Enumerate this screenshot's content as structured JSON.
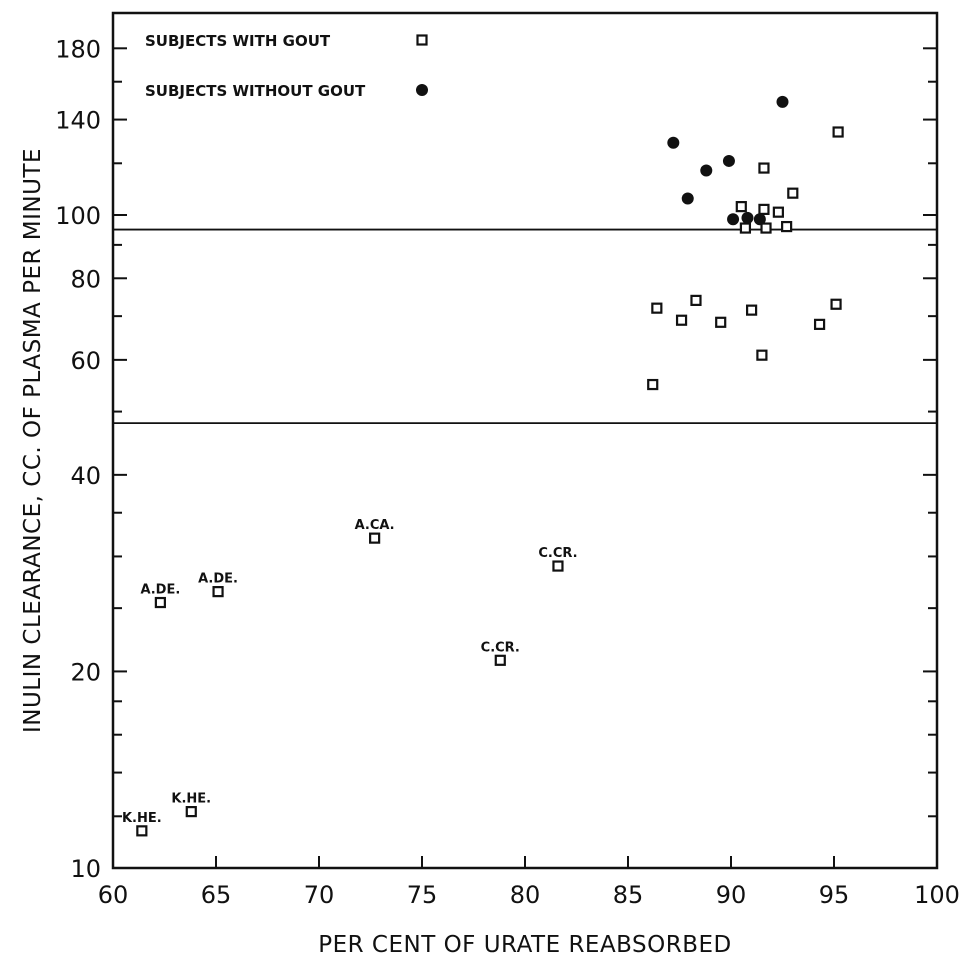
{
  "chart_data": {
    "type": "scatter",
    "xlabel": "PER CENT OF URATE REABSORBED",
    "ylabel": "INULIN CLEARANCE, CC. OF PLASMA PER MINUTE",
    "xlim": [
      60,
      100
    ],
    "ylim": [
      10,
      200
    ],
    "y_scale": "log",
    "grid": false,
    "legend_position": "top-left",
    "x_ticks": [
      60,
      65,
      70,
      75,
      80,
      85,
      90,
      95,
      100
    ],
    "x_tick_labels": [
      "60",
      "65",
      "70",
      "75",
      "80",
      "85",
      "90",
      "95",
      "100"
    ],
    "y_ticks": [
      10,
      20,
      40,
      60,
      80,
      100,
      140,
      180
    ],
    "y_tick_labels": [
      "10",
      "20",
      "40",
      "60",
      "80",
      "100",
      "140",
      "180"
    ],
    "reference_lines_y": [
      95,
      48
    ],
    "series": [
      {
        "name": "SUBJECTS WITH GOUT",
        "marker": "open-square",
        "points": [
          {
            "x": 95.2,
            "y": 134
          },
          {
            "x": 91.6,
            "y": 118
          },
          {
            "x": 93.0,
            "y": 108
          },
          {
            "x": 90.5,
            "y": 103
          },
          {
            "x": 91.6,
            "y": 102
          },
          {
            "x": 92.3,
            "y": 101
          },
          {
            "x": 90.7,
            "y": 95.5
          },
          {
            "x": 91.7,
            "y": 95.5
          },
          {
            "x": 92.7,
            "y": 96
          },
          {
            "x": 86.4,
            "y": 72
          },
          {
            "x": 88.3,
            "y": 74
          },
          {
            "x": 87.6,
            "y": 69
          },
          {
            "x": 89.5,
            "y": 68.5
          },
          {
            "x": 91.0,
            "y": 71.5
          },
          {
            "x": 95.1,
            "y": 73
          },
          {
            "x": 94.3,
            "y": 68
          },
          {
            "x": 91.5,
            "y": 61
          },
          {
            "x": 86.2,
            "y": 55
          },
          {
            "x": 72.7,
            "y": 32,
            "label": "A.CA."
          },
          {
            "x": 81.6,
            "y": 29,
            "label": "C.CR."
          },
          {
            "x": 62.3,
            "y": 25.5,
            "label": "A.DE."
          },
          {
            "x": 65.1,
            "y": 26.5,
            "label": "A.DE."
          },
          {
            "x": 78.8,
            "y": 20.8,
            "label": "C.CR."
          },
          {
            "x": 61.4,
            "y": 11.4,
            "label": "K.HE."
          },
          {
            "x": 63.8,
            "y": 12.2,
            "label": "K.HE."
          }
        ]
      },
      {
        "name": "SUBJECTS WITHOUT GOUT",
        "marker": "filled-circle",
        "points": [
          {
            "x": 92.5,
            "y": 149
          },
          {
            "x": 87.2,
            "y": 129
          },
          {
            "x": 89.9,
            "y": 121
          },
          {
            "x": 88.8,
            "y": 117
          },
          {
            "x": 87.9,
            "y": 106
          },
          {
            "x": 90.1,
            "y": 98.5
          },
          {
            "x": 90.8,
            "y": 99
          },
          {
            "x": 91.4,
            "y": 98.5
          }
        ]
      }
    ]
  }
}
